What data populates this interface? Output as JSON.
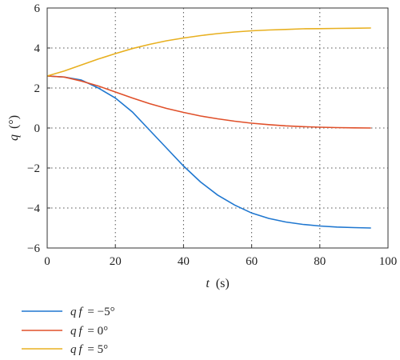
{
  "chart_data": {
    "type": "line",
    "title": "",
    "xlabel": {
      "var": "t",
      "unit": "(s)"
    },
    "ylabel": {
      "var": "q",
      "unit": "(°)"
    },
    "xlim": [
      0,
      100
    ],
    "ylim": [
      -6,
      6
    ],
    "xticks": [
      0,
      20,
      40,
      60,
      80,
      100
    ],
    "yticks": [
      -6,
      -4,
      -2,
      0,
      2,
      4,
      6
    ],
    "grid": true,
    "legend_position": "bottom-left, below plot",
    "series": [
      {
        "name": {
          "var": "qf",
          "value": " = −5°"
        },
        "color": "#1f77d0",
        "x": [
          0,
          5,
          10,
          15,
          20,
          25,
          30,
          35,
          40,
          45,
          50,
          55,
          60,
          65,
          70,
          75,
          80,
          85,
          90,
          95
        ],
        "y": [
          2.6,
          2.55,
          2.4,
          2.0,
          1.5,
          0.8,
          -0.1,
          -1.0,
          -1.9,
          -2.7,
          -3.35,
          -3.85,
          -4.25,
          -4.52,
          -4.7,
          -4.82,
          -4.9,
          -4.95,
          -4.98,
          -5.0
        ]
      },
      {
        "name": {
          "var": "qf",
          "value": " = 0°"
        },
        "color": "#e0502a",
        "x": [
          0,
          5,
          10,
          15,
          20,
          25,
          30,
          35,
          40,
          45,
          50,
          55,
          60,
          65,
          70,
          75,
          80,
          85,
          90,
          95
        ],
        "y": [
          2.6,
          2.55,
          2.35,
          2.1,
          1.8,
          1.5,
          1.22,
          0.98,
          0.78,
          0.6,
          0.46,
          0.34,
          0.24,
          0.17,
          0.11,
          0.07,
          0.04,
          0.02,
          0.01,
          0.0
        ]
      },
      {
        "name": {
          "var": "qf",
          "value": " = 5°"
        },
        "color": "#e8b020",
        "x": [
          0,
          5,
          10,
          15,
          20,
          25,
          30,
          35,
          40,
          45,
          50,
          55,
          60,
          65,
          70,
          75,
          80,
          85,
          90,
          95
        ],
        "y": [
          2.6,
          2.85,
          3.15,
          3.45,
          3.72,
          3.97,
          4.18,
          4.36,
          4.5,
          4.62,
          4.72,
          4.8,
          4.86,
          4.9,
          4.93,
          4.96,
          4.97,
          4.98,
          4.99,
          5.0
        ]
      }
    ]
  }
}
